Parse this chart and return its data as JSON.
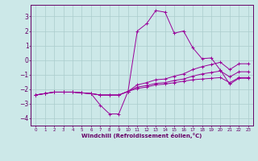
{
  "xlabel": "Windchill (Refroidissement éolien,°C)",
  "ylabel": "",
  "background_color": "#cce8e8",
  "grid_color": "#aacccc",
  "line_color": "#990099",
  "xlim": [
    -0.5,
    23.5
  ],
  "ylim": [
    -4.5,
    3.8
  ],
  "xticks": [
    0,
    1,
    2,
    3,
    4,
    5,
    6,
    7,
    8,
    9,
    10,
    11,
    12,
    13,
    14,
    15,
    16,
    17,
    18,
    19,
    20,
    21,
    22,
    23
  ],
  "yticks": [
    -4,
    -3,
    -2,
    -1,
    0,
    1,
    2,
    3
  ],
  "lines": [
    {
      "x": [
        0,
        1,
        2,
        3,
        4,
        5,
        6,
        7,
        8,
        9,
        10,
        11,
        12,
        13,
        14,
        15,
        16,
        17,
        18,
        19,
        20,
        21,
        22,
        23
      ],
      "y": [
        -2.4,
        -2.3,
        -2.2,
        -2.2,
        -2.2,
        -2.25,
        -2.3,
        -3.1,
        -3.7,
        -3.7,
        -2.15,
        2.0,
        2.5,
        3.4,
        3.3,
        1.85,
        2.0,
        0.85,
        0.1,
        0.15,
        -0.7,
        -1.65,
        -1.25,
        -1.25
      ]
    },
    {
      "x": [
        0,
        1,
        2,
        3,
        4,
        5,
        6,
        7,
        8,
        9,
        10,
        11,
        12,
        13,
        14,
        15,
        16,
        17,
        18,
        19,
        20,
        21,
        22,
        23
      ],
      "y": [
        -2.4,
        -2.3,
        -2.2,
        -2.2,
        -2.2,
        -2.25,
        -2.3,
        -2.4,
        -2.4,
        -2.4,
        -2.15,
        -1.95,
        -1.85,
        -1.7,
        -1.65,
        -1.55,
        -1.45,
        -1.35,
        -1.3,
        -1.25,
        -1.2,
        -1.55,
        -1.2,
        -1.2
      ]
    },
    {
      "x": [
        0,
        1,
        2,
        3,
        4,
        5,
        6,
        7,
        8,
        9,
        10,
        11,
        12,
        13,
        14,
        15,
        16,
        17,
        18,
        19,
        20,
        21,
        22,
        23
      ],
      "y": [
        -2.4,
        -2.3,
        -2.2,
        -2.2,
        -2.2,
        -2.25,
        -2.3,
        -2.4,
        -2.4,
        -2.4,
        -2.15,
        -1.85,
        -1.75,
        -1.6,
        -1.55,
        -1.4,
        -1.3,
        -1.1,
        -0.95,
        -0.85,
        -0.75,
        -1.15,
        -0.8,
        -0.8
      ]
    },
    {
      "x": [
        0,
        1,
        2,
        3,
        4,
        5,
        6,
        7,
        8,
        9,
        10,
        11,
        12,
        13,
        14,
        15,
        16,
        17,
        18,
        19,
        20,
        21,
        22,
        23
      ],
      "y": [
        -2.4,
        -2.3,
        -2.2,
        -2.2,
        -2.2,
        -2.25,
        -2.3,
        -2.4,
        -2.4,
        -2.4,
        -2.15,
        -1.7,
        -1.55,
        -1.35,
        -1.3,
        -1.1,
        -0.95,
        -0.65,
        -0.45,
        -0.3,
        -0.15,
        -0.65,
        -0.25,
        -0.25
      ]
    }
  ]
}
